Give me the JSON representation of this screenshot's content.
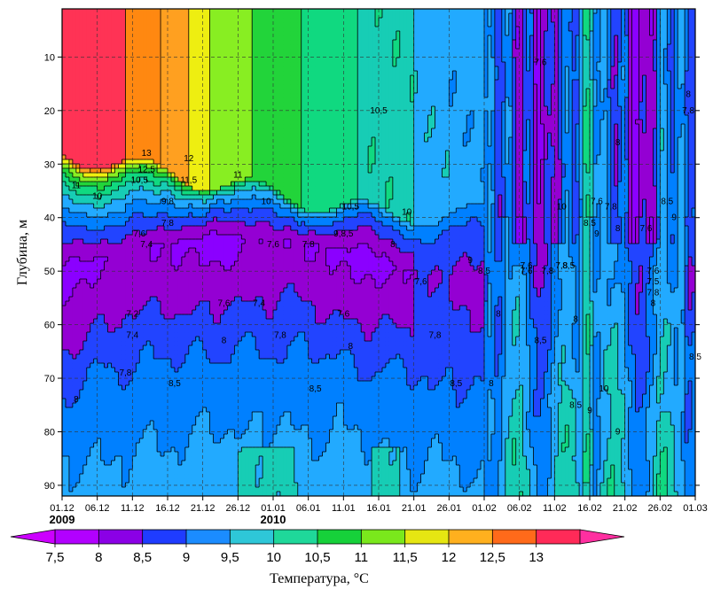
{
  "chart_data": {
    "type": "heatmap",
    "ylabel": "Глубина, м",
    "colorbar_title": "Температура, °C",
    "x_ticks": [
      "01.12",
      "06.12",
      "11.12",
      "16.12",
      "21.12",
      "26.12",
      "01.01",
      "06.01",
      "11.01",
      "16.01",
      "21.01",
      "26.01",
      "01.02",
      "06.02",
      "11.02",
      "16.02",
      "21.02",
      "26.02",
      "01.03"
    ],
    "year_labels": [
      {
        "text": "2009",
        "at": "01.12"
      },
      {
        "text": "2010",
        "at": "01.01"
      }
    ],
    "y_ticks": [
      10,
      20,
      30,
      40,
      50,
      60,
      70,
      80,
      90
    ],
    "ylim": [
      92,
      1
    ],
    "y_reversed": true,
    "grid": true,
    "levels": [
      7.5,
      8,
      8.5,
      9,
      9.5,
      10,
      10.5,
      11,
      11.5,
      12,
      12.5,
      13
    ],
    "colorbar_labels": [
      "7,5",
      "8",
      "8,5",
      "9",
      "9,5",
      "10",
      "10,5",
      "11",
      "11,5",
      "12",
      "12,5",
      "13"
    ],
    "colors": [
      "#8b00ff",
      "#9400d3",
      "#2244ff",
      "#0080ff",
      "#22aaff",
      "#17cdb5",
      "#10d980",
      "#22d43a",
      "#88ee22",
      "#eeee11",
      "#ffa020",
      "#ff8811",
      "#ff3355",
      "#ff1493"
    ],
    "colorbar_colors": [
      "#b200ff",
      "#8b00e6",
      "#1f3cff",
      "#1b8cff",
      "#2ec7d8",
      "#1fd89a",
      "#16d13a",
      "#7ae81c",
      "#e6e612",
      "#ffb01e",
      "#ff6a1a",
      "#ff2a58"
    ],
    "days_columns": [
      0,
      5,
      10,
      13,
      15,
      18,
      20,
      25,
      31,
      36,
      41,
      46,
      51,
      56,
      61,
      63,
      66,
      68,
      70,
      72,
      74,
      76,
      78,
      80,
      82,
      84,
      86,
      88,
      90
    ],
    "contour_labels": [
      {
        "t": "13",
        "day": 12,
        "depth": 28
      },
      {
        "t": "12,5",
        "day": 12,
        "depth": 31
      },
      {
        "t": "12",
        "day": 18,
        "depth": 29
      },
      {
        "t": "11",
        "day": 2,
        "depth": 34
      },
      {
        "t": "10,5",
        "day": 11,
        "depth": 33
      },
      {
        "t": "11,5",
        "day": 18,
        "depth": 33
      },
      {
        "t": "11",
        "day": 25,
        "depth": 32
      },
      {
        "t": "10",
        "day": 5,
        "depth": 36
      },
      {
        "t": "9,8",
        "day": 15,
        "depth": 37
      },
      {
        "t": "10",
        "day": 29,
        "depth": 37
      },
      {
        "t": "10,5",
        "day": 41,
        "depth": 38
      },
      {
        "t": "10",
        "day": 49,
        "depth": 39
      },
      {
        "t": "10,5",
        "day": 45,
        "depth": 20
      },
      {
        "t": "7,8",
        "day": 15,
        "depth": 41
      },
      {
        "t": "7,6",
        "day": 11,
        "depth": 43
      },
      {
        "t": "7,4",
        "day": 12,
        "depth": 45
      },
      {
        "t": "7,6",
        "day": 30,
        "depth": 45
      },
      {
        "t": "7,8",
        "day": 35,
        "depth": 45
      },
      {
        "t": "9,8,5",
        "day": 40,
        "depth": 43
      },
      {
        "t": "8",
        "day": 47,
        "depth": 45
      },
      {
        "t": "9",
        "day": 58,
        "depth": 48
      },
      {
        "t": "8,5",
        "day": 60,
        "depth": 50
      },
      {
        "t": "7,6",
        "day": 66,
        "depth": 50
      },
      {
        "t": "7,8",
        "day": 69,
        "depth": 50
      },
      {
        "t": "7,6",
        "day": 51,
        "depth": 52
      },
      {
        "t": "7,2",
        "day": 10,
        "depth": 58
      },
      {
        "t": "7,6",
        "day": 23,
        "depth": 56
      },
      {
        "t": "7,4",
        "day": 28,
        "depth": 56
      },
      {
        "t": "7,6",
        "day": 40,
        "depth": 58
      },
      {
        "t": "7,8",
        "day": 53,
        "depth": 62
      },
      {
        "t": "8",
        "day": 62,
        "depth": 58
      },
      {
        "t": "7,4",
        "day": 10,
        "depth": 62
      },
      {
        "t": "7,8",
        "day": 31,
        "depth": 62
      },
      {
        "t": "8",
        "day": 41,
        "depth": 64
      },
      {
        "t": "8",
        "day": 23,
        "depth": 63
      },
      {
        "t": "7,8",
        "day": 9,
        "depth": 69
      },
      {
        "t": "8",
        "day": 2,
        "depth": 74
      },
      {
        "t": "8,5",
        "day": 16,
        "depth": 71
      },
      {
        "t": "8,5",
        "day": 36,
        "depth": 72
      },
      {
        "t": "8,5",
        "day": 56,
        "depth": 71
      },
      {
        "t": "8",
        "day": 61,
        "depth": 71
      },
      {
        "t": "8,5",
        "day": 68,
        "depth": 63
      },
      {
        "t": "8,5",
        "day": 73,
        "depth": 75
      },
      {
        "t": "9",
        "day": 75,
        "depth": 76
      },
      {
        "t": "10",
        "day": 77,
        "depth": 72
      },
      {
        "t": "9",
        "day": 79,
        "depth": 80
      },
      {
        "t": "8,5",
        "day": 90,
        "depth": 66
      },
      {
        "t": "7,6",
        "day": 68,
        "depth": 11
      },
      {
        "t": "10",
        "day": 71,
        "depth": 38
      },
      {
        "t": "7,6",
        "day": 76,
        "depth": 37
      },
      {
        "t": "7,8",
        "day": 78,
        "depth": 38
      },
      {
        "t": "8,5",
        "day": 75,
        "depth": 41
      },
      {
        "t": "9",
        "day": 76,
        "depth": 43
      },
      {
        "t": "8",
        "day": 79,
        "depth": 42
      },
      {
        "t": "7,6",
        "day": 83,
        "depth": 42
      },
      {
        "t": "8",
        "day": 79,
        "depth": 26
      },
      {
        "t": "8,5",
        "day": 86,
        "depth": 37
      },
      {
        "t": "9",
        "day": 87,
        "depth": 40
      },
      {
        "t": "8",
        "day": 89,
        "depth": 17
      },
      {
        "t": "7,8",
        "day": 89,
        "depth": 20
      },
      {
        "t": "7,6",
        "day": 84,
        "depth": 50
      },
      {
        "t": "7,5",
        "day": 84,
        "depth": 52
      },
      {
        "t": "7,8",
        "day": 84,
        "depth": 54
      },
      {
        "t": "8",
        "day": 84,
        "depth": 56
      },
      {
        "t": "8",
        "day": 73,
        "depth": 59
      },
      {
        "t": "8,5",
        "day": 72,
        "depth": 49
      },
      {
        "t": "7,8",
        "day": 71,
        "depth": 49
      },
      {
        "t": "7,6",
        "day": 66,
        "depth": 49
      }
    ]
  }
}
